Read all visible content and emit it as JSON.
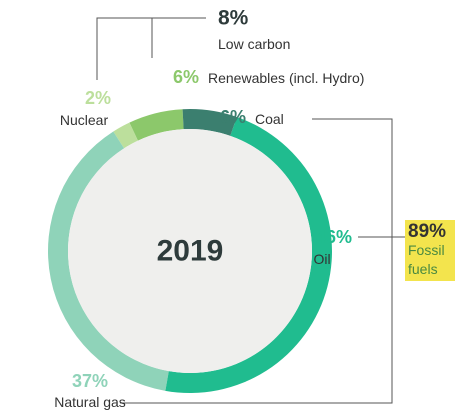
{
  "chart_data": {
    "type": "pie",
    "donut": true,
    "center_label": "2019",
    "categories": [
      "Coal",
      "Oil",
      "Natural gas",
      "Nuclear",
      "Renewables (incl. Hydro)"
    ],
    "values": [
      6,
      46,
      37,
      2,
      6
    ],
    "value_labels": [
      "6%",
      "46%",
      "37%",
      "2%",
      "6%"
    ],
    "colors": [
      "#3b7f6f",
      "#20bc8f",
      "#8fd3b9",
      "#bcdf9c",
      "#8cc86b"
    ],
    "groups": [
      {
        "name": "Low carbon",
        "value": 8,
        "value_label": "8%"
      },
      {
        "name": "Fossil fuels",
        "value": 89,
        "value_label": "89%"
      }
    ]
  }
}
